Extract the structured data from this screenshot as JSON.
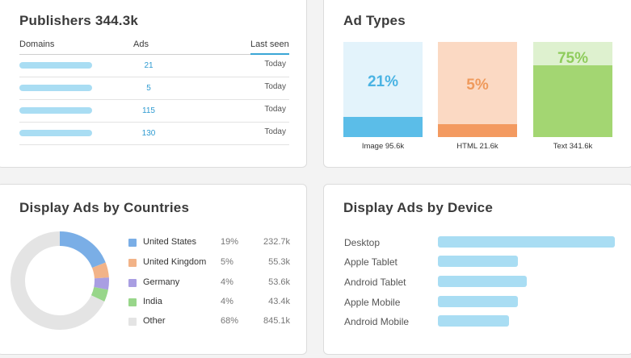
{
  "publishers": {
    "title": "Publishers 344.3k",
    "columns": {
      "domains": "Domains",
      "ads": "Ads",
      "last_seen": "Last seen"
    },
    "rows": [
      {
        "ads": "21",
        "last_seen": "Today"
      },
      {
        "ads": "5",
        "last_seen": "Today"
      },
      {
        "ads": "115",
        "last_seen": "Today"
      },
      {
        "ads": "130",
        "last_seen": "Today"
      }
    ]
  },
  "ad_types": {
    "title": "Ad Types",
    "items": [
      {
        "pct": "21%",
        "label": "Image 95.6k",
        "share": 0.21,
        "light": "#e3f3fb",
        "dark": "#5bbde8",
        "text": "#4ab3e3"
      },
      {
        "pct": "5%",
        "label": "HTML 21.6k",
        "share": 0.05,
        "light": "#fbd9c3",
        "dark": "#f39a60",
        "text": "#ef9a5c"
      },
      {
        "pct": "75%",
        "label": "Text 341.6k",
        "share": 0.75,
        "light": "#def1cf",
        "dark": "#a3d672",
        "text": "#8fcc5c"
      }
    ]
  },
  "countries": {
    "title": "Display Ads by Countries",
    "items": [
      {
        "name": "United States",
        "pct": "19%",
        "value": "232.7k",
        "share": 19,
        "color": "#7aaee6"
      },
      {
        "name": "United Kingdom",
        "pct": "5%",
        "value": "55.3k",
        "share": 5,
        "color": "#f2b388"
      },
      {
        "name": "Germany",
        "pct": "4%",
        "value": "53.6k",
        "share": 4,
        "color": "#a99ee2"
      },
      {
        "name": "India",
        "pct": "4%",
        "value": "43.4k",
        "share": 4,
        "color": "#98d68a"
      },
      {
        "name": "Other",
        "pct": "68%",
        "value": "845.1k",
        "share": 68,
        "color": "#e4e4e4"
      }
    ]
  },
  "device": {
    "title": "Display Ads by Device",
    "items": [
      {
        "name": "Desktop",
        "share": 1.0
      },
      {
        "name": "Apple Tablet",
        "share": 0.45
      },
      {
        "name": "Android Tablet",
        "share": 0.5
      },
      {
        "name": "Apple Mobile",
        "share": 0.45
      },
      {
        "name": "Android Mobile",
        "share": 0.4
      }
    ]
  }
}
